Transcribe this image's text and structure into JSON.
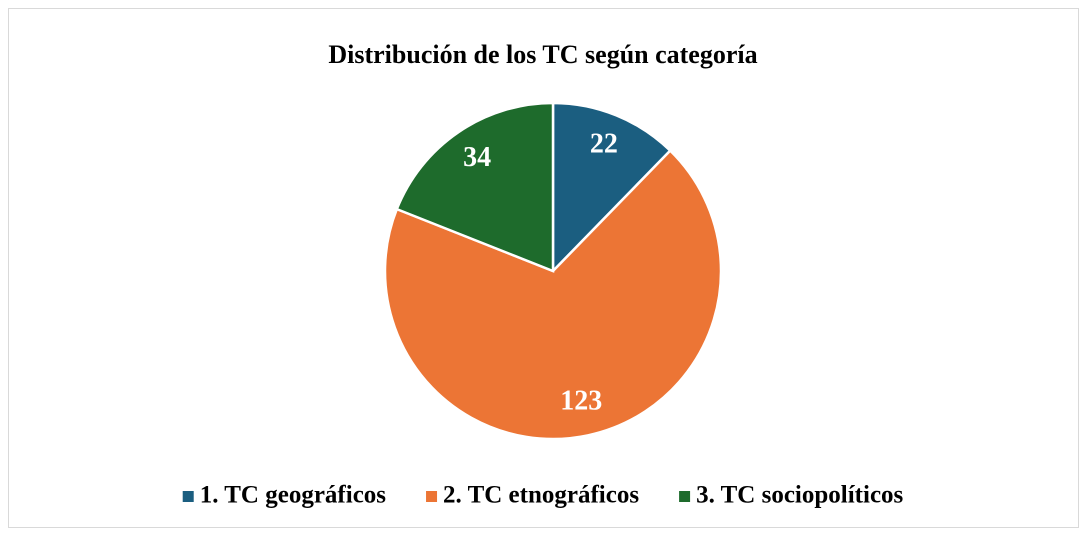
{
  "chart_data": {
    "type": "pie",
    "title": "Distribución de los TC según categoría",
    "categories": [
      "1. TC geográficos",
      "2. TC etnográficos",
      "3. TC sociopolíticos"
    ],
    "values": [
      22,
      123,
      34
    ],
    "colors": [
      "#1b5e80",
      "#ec7535",
      "#1e6b2c"
    ],
    "legend": "bottom"
  }
}
